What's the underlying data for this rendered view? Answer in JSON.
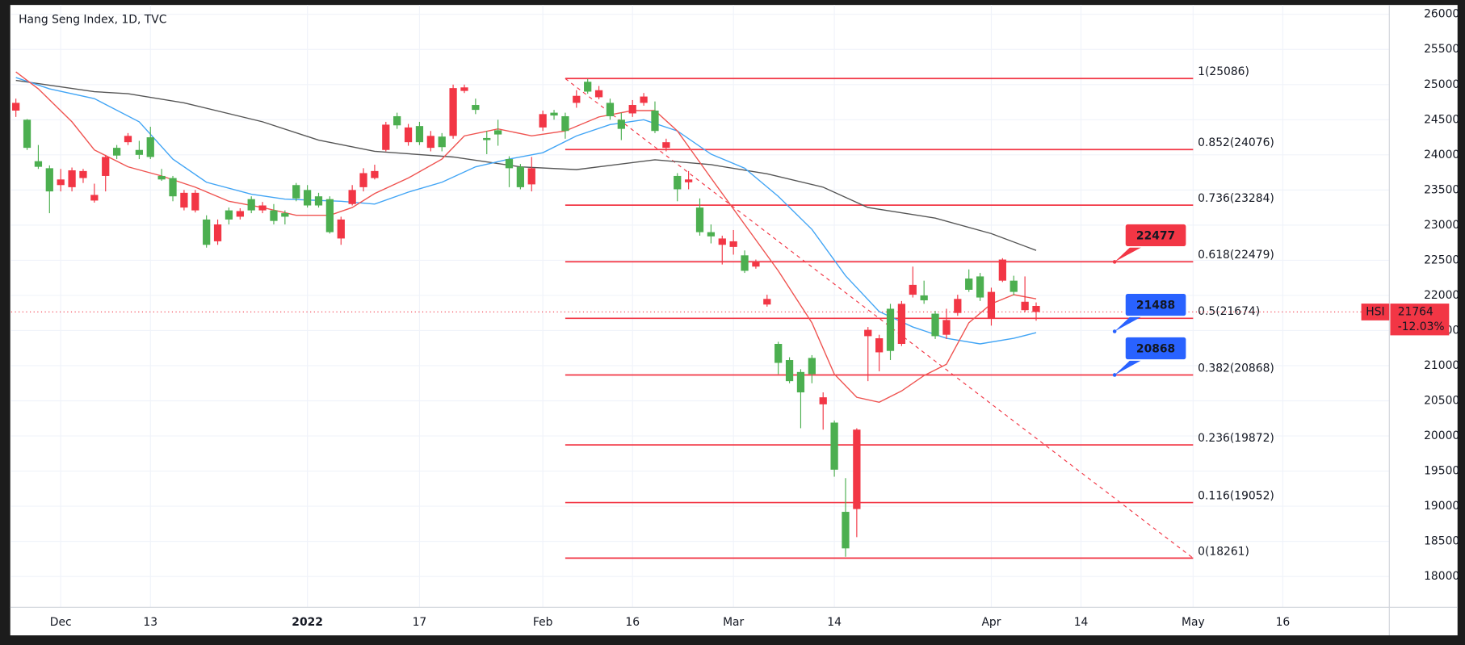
{
  "chart_data": {
    "type": "candlestick",
    "title": "Hang Seng Index, 1D, TVC",
    "up_color": "#4caf50",
    "down_color": "#f23645",
    "x": [
      -4,
      -3,
      -2,
      -1,
      0,
      1,
      2,
      3,
      4,
      5,
      6,
      7,
      8,
      9,
      10,
      11,
      12,
      13,
      14,
      15,
      16,
      17,
      18,
      19,
      20,
      21,
      22,
      23,
      24,
      25,
      26,
      27,
      28,
      29,
      30,
      31,
      32,
      33,
      34,
      35,
      36,
      37,
      38,
      39,
      40,
      41,
      42,
      43,
      44,
      45,
      46,
      47,
      48,
      49,
      50,
      51,
      52,
      53,
      54,
      55,
      56,
      57,
      58,
      59,
      60,
      61,
      62,
      63,
      64,
      65,
      66,
      67,
      68,
      69,
      70,
      71,
      72,
      73,
      74,
      75,
      76,
      77,
      78,
      79,
      80,
      81,
      82,
      83,
      84,
      85,
      86,
      87
    ],
    "open": [
      24740,
      24100,
      23830,
      23480,
      23650,
      23780,
      23770,
      23430,
      23970,
      23990,
      24270,
      24000,
      23970,
      23650,
      23410,
      23460,
      23460,
      22720,
      23010,
      23080,
      23200,
      23210,
      23280,
      23060,
      23120,
      23380,
      23280,
      23280,
      22900,
      23080,
      23500,
      23740,
      23770,
      24430,
      24420,
      24390,
      24180,
      24270,
      24110,
      24950,
      24960,
      24640,
      24210,
      24290,
      23810,
      23540,
      23810,
      24580,
      24560,
      24340,
      24840,
      24900,
      24920,
      24550,
      24370,
      24710,
      24830,
      24340,
      24180,
      23510,
      23650,
      22900,
      22840,
      22810,
      22770,
      22350,
      22470,
      21950,
      21040,
      20780,
      20620,
      20880,
      20550,
      19520,
      18400,
      20090,
      21510,
      21390,
      21210,
      21880,
      22150,
      21930,
      21420,
      21650,
      21950,
      22080,
      21970,
      22050,
      22510,
      22050,
      21910,
      21850
    ],
    "high": [
      24800,
      24510,
      24140,
      23850,
      23800,
      23820,
      23800,
      23590,
      24000,
      24140,
      24310,
      24200,
      24400,
      23800,
      23700,
      23500,
      23500,
      23140,
      23080,
      23250,
      23240,
      23410,
      23330,
      23300,
      23210,
      23600,
      23570,
      23460,
      23410,
      23120,
      23570,
      23810,
      23860,
      24470,
      24600,
      24440,
      24470,
      24340,
      24310,
      25000,
      25000,
      24800,
      24340,
      24500,
      23980,
      23870,
      23970,
      24630,
      24640,
      24600,
      24920,
      25080,
      24980,
      24800,
      24600,
      24780,
      24880,
      24760,
      24230,
      23740,
      23770,
      23380,
      23010,
      22850,
      22930,
      22640,
      22510,
      22010,
      21340,
      21120,
      20950,
      21150,
      20620,
      20220,
      19400,
      20110,
      21550,
      21440,
      21880,
      21920,
      22410,
      22210,
      21780,
      21810,
      22010,
      22370,
      22320,
      22110,
      22530,
      22280,
      22270,
      21900
    ],
    "low": [
      24540,
      24070,
      23800,
      23170,
      23480,
      23480,
      23600,
      23320,
      23480,
      23940,
      24140,
      23940,
      23940,
      23630,
      23340,
      23210,
      23180,
      22680,
      22720,
      23010,
      23080,
      23170,
      23170,
      23010,
      23010,
      23340,
      23250,
      23250,
      22880,
      22720,
      23280,
      23480,
      23650,
      24050,
      24370,
      24130,
      24140,
      24050,
      24050,
      24230,
      24880,
      24580,
      24010,
      24130,
      23540,
      23510,
      23480,
      24340,
      24500,
      24230,
      24670,
      24870,
      24790,
      24500,
      24210,
      24540,
      24700,
      24310,
      24050,
      23340,
      23510,
      22850,
      22740,
      22440,
      22580,
      22320,
      22380,
      21840,
      20880,
      20750,
      20110,
      20750,
      20090,
      19420,
      18280,
      18560,
      20780,
      20920,
      21080,
      21280,
      21970,
      21880,
      21380,
      21380,
      21710,
      22050,
      21920,
      21570,
      22190,
      22000,
      21760,
      21640
    ],
    "close": [
      24630,
      24500,
      23910,
      23810,
      23570,
      23540,
      23670,
      23350,
      23700,
      24100,
      24180,
      24070,
      24250,
      23700,
      23670,
      23250,
      23210,
      23080,
      22770,
      23210,
      23120,
      23370,
      23210,
      23210,
      23170,
      23570,
      23500,
      23410,
      23370,
      22810,
      23300,
      23540,
      23670,
      24070,
      24550,
      24180,
      24410,
      24100,
      24260,
      24270,
      24910,
      24710,
      24240,
      24350,
      23940,
      23830,
      23580,
      24390,
      24600,
      24550,
      24740,
      25040,
      24820,
      24740,
      24500,
      24590,
      24740,
      24630,
      24100,
      23700,
      23610,
      23250,
      22900,
      22720,
      22690,
      22570,
      22410,
      21870,
      21310,
      21080,
      20910,
      21110,
      20450,
      20190,
      18920,
      18960,
      21420,
      21190,
      21810,
      21310,
      22010,
      22000,
      21740,
      21440,
      21750,
      22240,
      22270,
      21680,
      22210,
      22210,
      21790,
      21764
    ],
    "overlays": [
      {
        "color": "#555555",
        "x": [
          -4,
          3,
          6,
          11,
          18,
          23,
          28,
          35,
          41,
          46,
          53,
          58,
          63,
          68,
          72,
          78,
          83,
          87
        ],
        "values": [
          25060,
          24900,
          24870,
          24740,
          24470,
          24210,
          24050,
          23970,
          23830,
          23790,
          23930,
          23860,
          23730,
          23540,
          23250,
          23100,
          22880,
          22640
        ]
      },
      {
        "color": "#42a5f5",
        "x": [
          -4,
          -1,
          3,
          7,
          10,
          13,
          17,
          20,
          25,
          28,
          31,
          34,
          37,
          40,
          43,
          46,
          49,
          52,
          55,
          58,
          61,
          64,
          67,
          70,
          73,
          76,
          79,
          82,
          85,
          87
        ],
        "values": [
          25100,
          24940,
          24800,
          24470,
          23940,
          23610,
          23440,
          23370,
          23340,
          23300,
          23470,
          23610,
          23830,
          23940,
          24030,
          24270,
          24430,
          24500,
          24340,
          24010,
          23810,
          23410,
          22940,
          22280,
          21770,
          21550,
          21390,
          21310,
          21390,
          21470
        ]
      },
      {
        "color": "#ef5350",
        "x": [
          -4,
          -2,
          1,
          3,
          6,
          9,
          12,
          15,
          18,
          21,
          24,
          26,
          28,
          31,
          34,
          36,
          39,
          42,
          45,
          48,
          51,
          53,
          55,
          58,
          61,
          64,
          67,
          69,
          71,
          73,
          75,
          77,
          79,
          81,
          83,
          85,
          87
        ],
        "values": [
          25180,
          24940,
          24470,
          24070,
          23830,
          23700,
          23540,
          23340,
          23250,
          23140,
          23140,
          23250,
          23450,
          23670,
          23940,
          24270,
          24370,
          24270,
          24340,
          24540,
          24630,
          24630,
          24340,
          23670,
          23010,
          22350,
          21610,
          20880,
          20550,
          20480,
          20640,
          20860,
          21020,
          21610,
          21880,
          22010,
          21950
        ]
      }
    ],
    "fib_color": "#f23645",
    "fib_x": [
      45,
      101
    ],
    "fib_levels": [
      {
        "value": 25086,
        "label": "1(25086)"
      },
      {
        "value": 24076,
        "label": "0.852(24076)"
      },
      {
        "value": 23284,
        "label": "0.736(23284)"
      },
      {
        "value": 22479,
        "label": "0.618(22479)"
      },
      {
        "value": 21674,
        "label": "0.5(21674)"
      },
      {
        "value": 20868,
        "label": "0.382(20868)"
      },
      {
        "value": 19872,
        "label": "0.236(19872)"
      },
      {
        "value": 19052,
        "label": "0.116(19052)"
      },
      {
        "value": 18261,
        "label": "0(18261)"
      }
    ],
    "trend_line": {
      "color": "#f23645",
      "x": [
        45,
        101
      ],
      "values": [
        25086,
        18261
      ]
    },
    "callout_x": 94,
    "callouts": [
      {
        "value": 22477,
        "color": "#f23645"
      },
      {
        "value": 21488,
        "color": "#2962ff"
      },
      {
        "value": 20868,
        "color": "#2962ff"
      }
    ],
    "last": {
      "symbol": "HSI",
      "value": 21764,
      "change": {
        "value": -12.03,
        "label": "-12.03%"
      },
      "color": "#f23645"
    },
    "xlim": [
      -4.4167,
      118.5
    ],
    "xticks": [
      {
        "value": 0,
        "label": "Dec"
      },
      {
        "value": 8,
        "label": "13"
      },
      {
        "value": 22,
        "label": "2022"
      },
      {
        "value": 32,
        "label": "17"
      },
      {
        "value": 43,
        "label": "Feb"
      },
      {
        "value": 51,
        "label": "16"
      },
      {
        "value": 60,
        "label": "Mar"
      },
      {
        "value": 69,
        "label": "14"
      },
      {
        "value": 83,
        "label": "Apr"
      },
      {
        "value": 91,
        "label": "14"
      },
      {
        "value": 101,
        "label": "May"
      },
      {
        "value": 109,
        "label": "16"
      }
    ],
    "ylim": [
      17561,
      26133
    ],
    "yticks": [
      18000,
      18500,
      19000,
      19500,
      20000,
      20500,
      21000,
      21500,
      22000,
      22500,
      23000,
      23500,
      24000,
      24500,
      25000,
      25500,
      26000
    ],
    "grid": true
  }
}
